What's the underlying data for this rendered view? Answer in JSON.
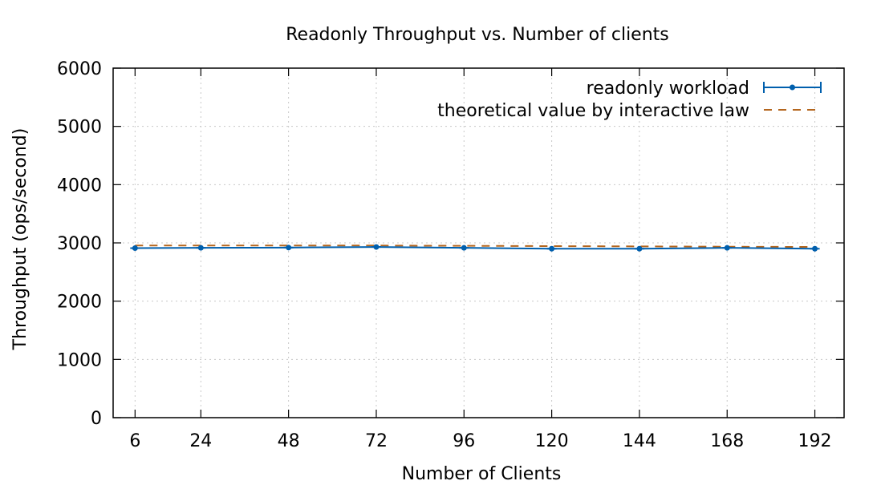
{
  "chart_data": {
    "type": "line",
    "title": "Readonly Throughput vs. Number of clients",
    "xlabel": "Number of Clients",
    "ylabel": "Throughput (ops/second)",
    "x": [
      6,
      24,
      48,
      72,
      96,
      120,
      144,
      168,
      192
    ],
    "xticks": [
      "6",
      "24",
      "48",
      "72",
      "96",
      "120",
      "144",
      "168",
      "192"
    ],
    "yticks": [
      "0",
      "1000",
      "2000",
      "3000",
      "4000",
      "5000",
      "6000"
    ],
    "ylim": [
      0,
      6000
    ],
    "xlim": [
      0,
      200
    ],
    "grid": true,
    "legend_position": "top-right",
    "series": [
      {
        "name": "readonly workload",
        "style": "line with error bars",
        "color": "#005fad",
        "values": [
          2910,
          2915,
          2920,
          2930,
          2915,
          2900,
          2900,
          2915,
          2900
        ]
      },
      {
        "name": "theoretical value by interactive law",
        "style": "dashed",
        "color": "#b4661e",
        "values": [
          2955,
          2955,
          2955,
          2955,
          2950,
          2945,
          2940,
          2935,
          2930
        ]
      }
    ]
  }
}
